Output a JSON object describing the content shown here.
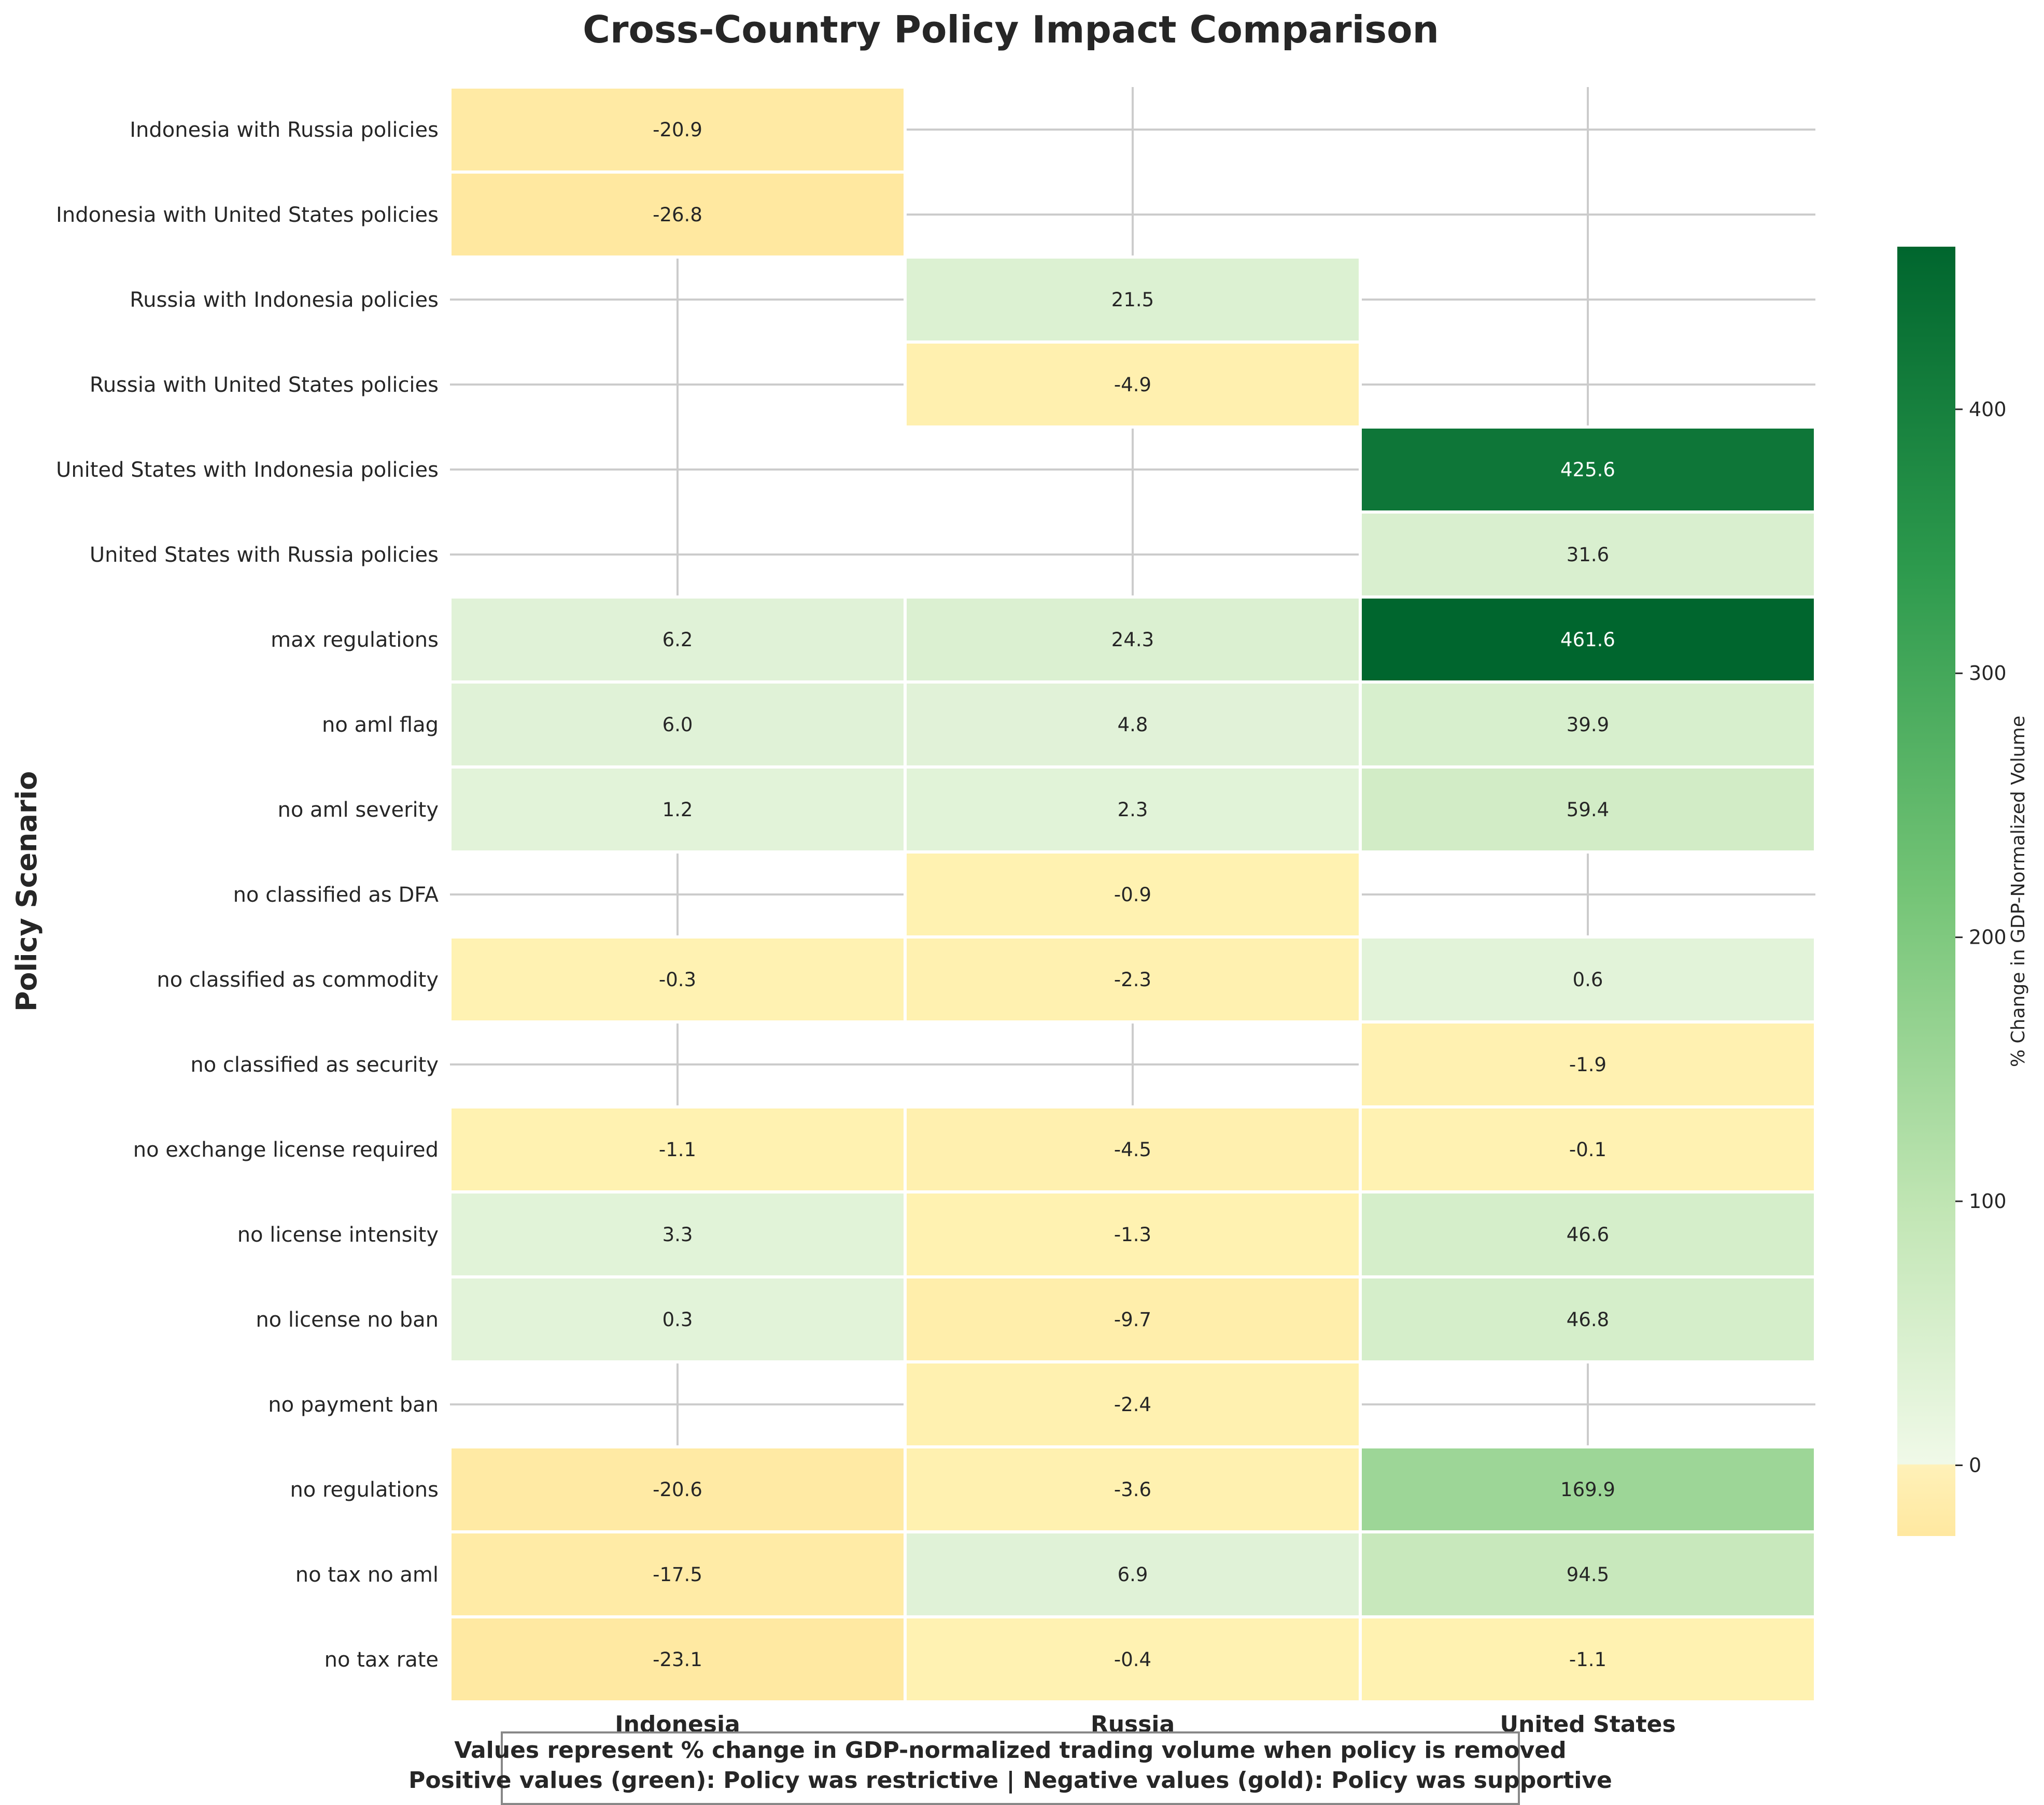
{
  "chart_data": {
    "type": "heatmap",
    "title": "Cross-Country Policy Impact Comparison",
    "ylabel": "Policy Scenario",
    "columns": [
      "Indonesia",
      "Russia",
      "United States"
    ],
    "rows": [
      "Indonesia with Russia policies",
      "Indonesia with United States policies",
      "Russia with Indonesia policies",
      "Russia with United States policies",
      "United States with Indonesia policies",
      "United States with Russia policies",
      "max regulations",
      "no aml flag",
      "no aml severity",
      "no classified as DFA",
      "no classified as commodity",
      "no classified as security",
      "no exchange license required",
      "no license intensity",
      "no license no ban",
      "no payment ban",
      "no regulations",
      "no tax no aml",
      "no tax rate"
    ],
    "values": [
      [
        -20.9,
        null,
        null
      ],
      [
        -26.8,
        null,
        null
      ],
      [
        null,
        21.5,
        null
      ],
      [
        null,
        -4.9,
        null
      ],
      [
        null,
        null,
        425.6
      ],
      [
        null,
        null,
        31.6
      ],
      [
        6.2,
        24.3,
        461.6
      ],
      [
        6.0,
        4.8,
        39.9
      ],
      [
        1.2,
        2.3,
        59.4
      ],
      [
        null,
        -0.9,
        null
      ],
      [
        -0.3,
        -2.3,
        0.6
      ],
      [
        null,
        null,
        -1.9
      ],
      [
        -1.1,
        -4.5,
        -0.1
      ],
      [
        3.3,
        -1.3,
        46.6
      ],
      [
        0.3,
        -9.7,
        46.8
      ],
      [
        null,
        -2.4,
        null
      ],
      [
        -20.6,
        -3.6,
        169.9
      ],
      [
        -17.5,
        6.9,
        94.5
      ],
      [
        -23.1,
        -0.4,
        -1.1
      ]
    ],
    "colorbar": {
      "label": "% Change in GDP-Normalized Volume",
      "range": [
        -26.8,
        461.6
      ],
      "ticks": [
        0,
        100,
        200,
        300,
        400
      ]
    },
    "note_lines": [
      "Values represent % change in GDP-normalized trading volume when policy is removed",
      "Positive values (green): Policy was restrictive | Negative values (gold): Policy was supportive"
    ],
    "colors": {
      "negative_light": "#fff2b2",
      "negative_strong": "#ffe8a0",
      "positive_light": "#e2f3d9",
      "positive_strong": "#00662e",
      "grid": "#cccccc",
      "border": "#ffffff"
    }
  }
}
